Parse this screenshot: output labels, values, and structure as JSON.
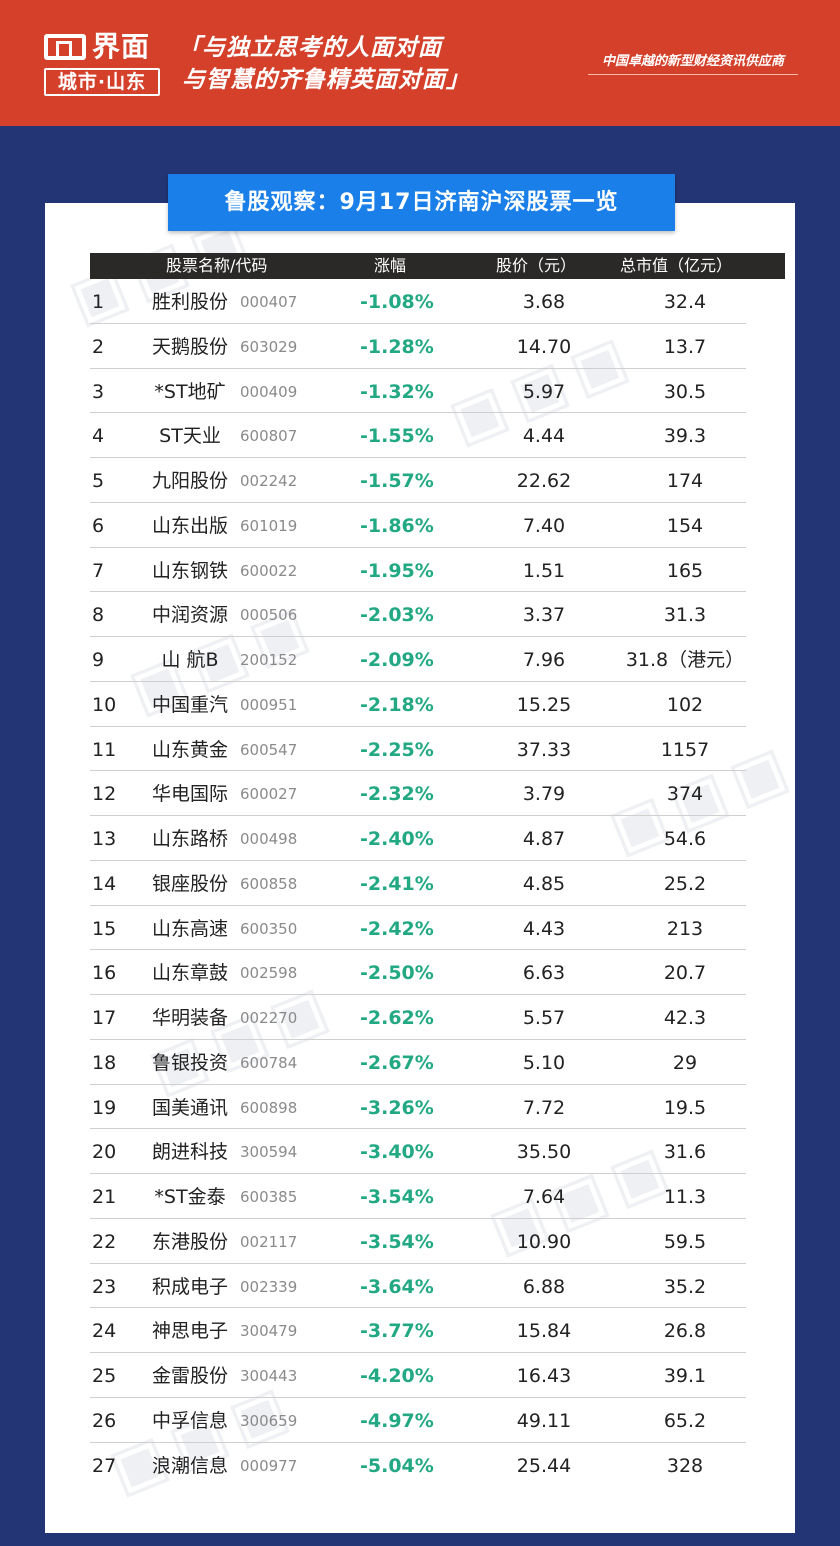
{
  "header": {
    "logo_name": "界面",
    "logo_sub": "城市·山东",
    "slogan_line1": "「与独立思考的人面对面",
    "slogan_line2": "与智慧的齐鲁精英面对面」",
    "tagline": "中国卓越的新型财经资讯供应商",
    "bg_color": "#d4402a"
  },
  "title": "鲁股观察：9月17日济南沪深股票一览",
  "columns": {
    "name": "股票名称/代码",
    "change": "涨幅",
    "price": "股价（元）",
    "cap": "总市值（亿元）"
  },
  "rows": [
    {
      "idx": "1",
      "name": "胜利股份",
      "code": "000407",
      "change": "-1.08%",
      "price": "3.68",
      "cap": "32.4"
    },
    {
      "idx": "2",
      "name": "天鹅股份",
      "code": "603029",
      "change": "-1.28%",
      "price": "14.70",
      "cap": "13.7"
    },
    {
      "idx": "3",
      "name": "*ST地矿",
      "code": "000409",
      "change": "-1.32%",
      "price": "5.97",
      "cap": "30.5"
    },
    {
      "idx": "4",
      "name": "ST天业",
      "code": "600807",
      "change": "-1.55%",
      "price": "4.44",
      "cap": "39.3"
    },
    {
      "idx": "5",
      "name": "九阳股份",
      "code": "002242",
      "change": "-1.57%",
      "price": "22.62",
      "cap": "174"
    },
    {
      "idx": "6",
      "name": "山东出版",
      "code": "601019",
      "change": "-1.86%",
      "price": "7.40",
      "cap": "154"
    },
    {
      "idx": "7",
      "name": "山东钢铁",
      "code": "600022",
      "change": "-1.95%",
      "price": "1.51",
      "cap": "165"
    },
    {
      "idx": "8",
      "name": "中润资源",
      "code": "000506",
      "change": "-2.03%",
      "price": "3.37",
      "cap": "31.3"
    },
    {
      "idx": "9",
      "name": "山 航B",
      "code": "200152",
      "change": "-2.09%",
      "price": "7.96",
      "cap": "31.8（港元）"
    },
    {
      "idx": "10",
      "name": "中国重汽",
      "code": "000951",
      "change": "-2.18%",
      "price": "15.25",
      "cap": "102"
    },
    {
      "idx": "11",
      "name": "山东黄金",
      "code": "600547",
      "change": "-2.25%",
      "price": "37.33",
      "cap": "1157"
    },
    {
      "idx": "12",
      "name": "华电国际",
      "code": "600027",
      "change": "-2.32%",
      "price": "3.79",
      "cap": "374"
    },
    {
      "idx": "13",
      "name": "山东路桥",
      "code": "000498",
      "change": "-2.40%",
      "price": "4.87",
      "cap": "54.6"
    },
    {
      "idx": "14",
      "name": "银座股份",
      "code": "600858",
      "change": "-2.41%",
      "price": "4.85",
      "cap": "25.2"
    },
    {
      "idx": "15",
      "name": "山东高速",
      "code": "600350",
      "change": "-2.42%",
      "price": "4.43",
      "cap": "213"
    },
    {
      "idx": "16",
      "name": "山东章鼓",
      "code": "002598",
      "change": "-2.50%",
      "price": "6.63",
      "cap": "20.7"
    },
    {
      "idx": "17",
      "name": "华明装备",
      "code": "002270",
      "change": "-2.62%",
      "price": "5.57",
      "cap": "42.3"
    },
    {
      "idx": "18",
      "name": "鲁银投资",
      "code": "600784",
      "change": "-2.67%",
      "price": "5.10",
      "cap": "29"
    },
    {
      "idx": "19",
      "name": "国美通讯",
      "code": "600898",
      "change": "-3.26%",
      "price": "7.72",
      "cap": "19.5"
    },
    {
      "idx": "20",
      "name": "朗进科技",
      "code": "300594",
      "change": "-3.40%",
      "price": "35.50",
      "cap": "31.6"
    },
    {
      "idx": "21",
      "name": "*ST金泰",
      "code": "600385",
      "change": "-3.54%",
      "price": "7.64",
      "cap": "11.3"
    },
    {
      "idx": "22",
      "name": "东港股份",
      "code": "002117",
      "change": "-3.54%",
      "price": "10.90",
      "cap": "59.5"
    },
    {
      "idx": "23",
      "name": "积成电子",
      "code": "002339",
      "change": "-3.64%",
      "price": "6.88",
      "cap": "35.2"
    },
    {
      "idx": "24",
      "name": "神思电子",
      "code": "300479",
      "change": "-3.77%",
      "price": "15.84",
      "cap": "26.8"
    },
    {
      "idx": "25",
      "name": "金雷股份",
      "code": "300443",
      "change": "-4.20%",
      "price": "16.43",
      "cap": "39.1"
    },
    {
      "idx": "26",
      "name": "中孚信息",
      "code": "300659",
      "change": "-4.97%",
      "price": "49.11",
      "cap": "65.2"
    },
    {
      "idx": "27",
      "name": "浪潮信息",
      "code": "000977",
      "change": "-5.04%",
      "price": "25.44",
      "cap": "328"
    }
  ],
  "colors": {
    "page_bg": "#233575",
    "banner": "#1a7fe8",
    "change_negative": "#22a883",
    "table_header_bg": "#2b2927"
  }
}
